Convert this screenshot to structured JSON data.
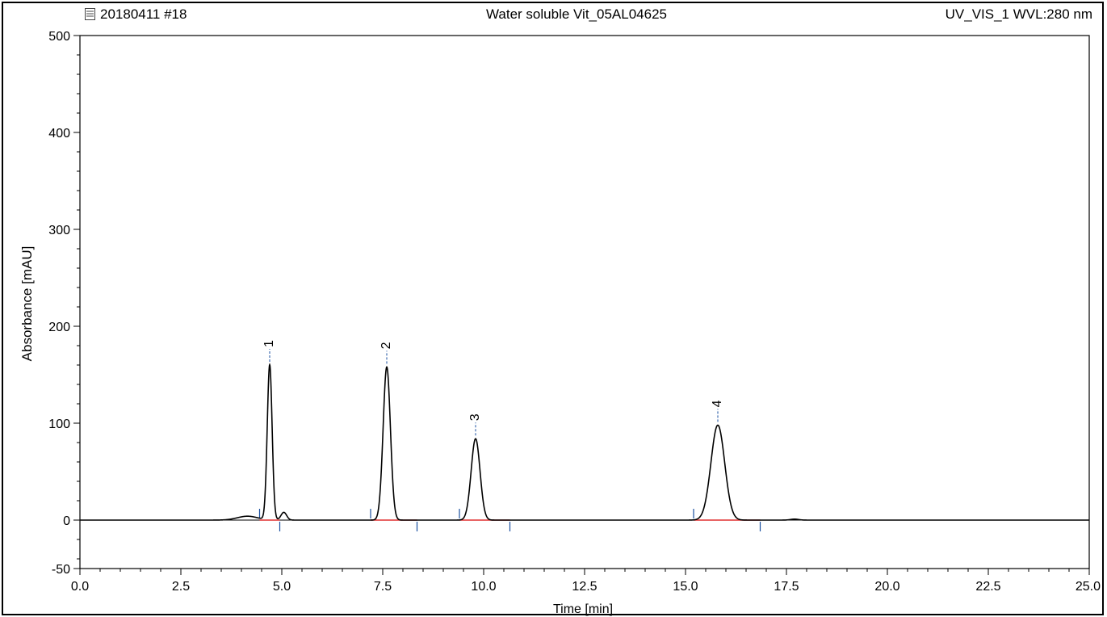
{
  "header": {
    "sample": "20180411 #18",
    "title": "Water soluble Vit_05AL04625",
    "channel": "UV_VIS_1 WVL:280 nm"
  },
  "chart_data": {
    "type": "line",
    "xlabel": "Time [min]",
    "ylabel": "Absorbance [mAU]",
    "xlim": [
      0.0,
      25.0
    ],
    "ylim": [
      -50,
      500
    ],
    "xticks": [
      "0.0",
      "2.5",
      "5.0",
      "7.5",
      "10.0",
      "12.5",
      "15.0",
      "17.5",
      "20.0",
      "22.5",
      "25.0"
    ],
    "yticks": [
      "-50",
      "0",
      "100",
      "200",
      "300",
      "400",
      "500"
    ],
    "grid": false,
    "colors": {
      "trace": "#000000",
      "baseline": "#e03030",
      "marker": "#1a4fa0"
    },
    "peaks": [
      {
        "label": "1",
        "rt": 4.7,
        "height": 160,
        "width": 0.06
      },
      {
        "label": "2",
        "rt": 7.6,
        "height": 158,
        "width": 0.09
      },
      {
        "label": "3",
        "rt": 9.8,
        "height": 84,
        "width": 0.11
      },
      {
        "label": "4",
        "rt": 15.8,
        "height": 98,
        "width": 0.17
      }
    ],
    "minor_features": [
      {
        "rt": 4.15,
        "height": 4,
        "width": 0.25
      },
      {
        "rt": 5.05,
        "height": 8,
        "width": 0.07
      },
      {
        "rt": 17.7,
        "height": 1,
        "width": 0.1
      }
    ],
    "integration": [
      {
        "start": 4.45,
        "end": 4.95
      },
      {
        "start": 7.2,
        "end": 8.35
      },
      {
        "start": 9.4,
        "end": 10.65
      },
      {
        "start": 15.2,
        "end": 16.85
      }
    ]
  }
}
